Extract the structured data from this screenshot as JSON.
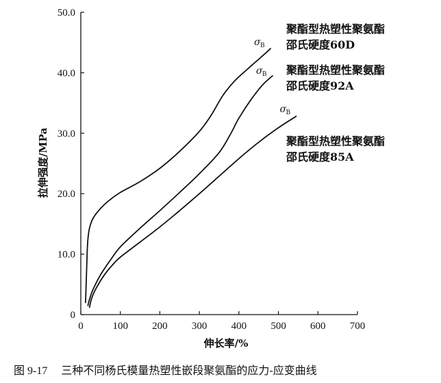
{
  "chart_data": {
    "type": "line",
    "title": "",
    "xlabel": "伸长率/%",
    "ylabel": "拉伸强度/MPa",
    "xlim": [
      0,
      700
    ],
    "ylim": [
      0,
      50
    ],
    "x_ticks": [
      "0",
      "100",
      "200",
      "300",
      "400",
      "500",
      "600",
      "700"
    ],
    "y_ticks": [
      "0",
      "10.0",
      "20.0",
      "30.0",
      "40.0",
      "50.0"
    ],
    "grid": false,
    "series": [
      {
        "name_line1": "聚酯型热塑性聚氨酯",
        "name_line2": "邵氏硬度60D",
        "marker_label": "σ",
        "marker_sub": "B",
        "points": [
          [
            12,
            2
          ],
          [
            14,
            6
          ],
          [
            16,
            10
          ],
          [
            18,
            12.5
          ],
          [
            22,
            14.3
          ],
          [
            30,
            15.8
          ],
          [
            45,
            17.2
          ],
          [
            70,
            18.8
          ],
          [
            100,
            20.2
          ],
          [
            150,
            22
          ],
          [
            200,
            24.2
          ],
          [
            250,
            27
          ],
          [
            300,
            30.3
          ],
          [
            330,
            33
          ],
          [
            360,
            36.3
          ],
          [
            390,
            38.7
          ],
          [
            420,
            40.5
          ],
          [
            460,
            42.8
          ],
          [
            480,
            44
          ]
        ]
      },
      {
        "name_line1": "聚酯型热塑性聚氨酯",
        "name_line2": "邵氏硬度92A",
        "marker_label": "σ",
        "marker_sub": "B",
        "points": [
          [
            18,
            1.5
          ],
          [
            22,
            2.5
          ],
          [
            30,
            4
          ],
          [
            50,
            6.6
          ],
          [
            80,
            9.5
          ],
          [
            100,
            11.2
          ],
          [
            150,
            14.3
          ],
          [
            200,
            17.2
          ],
          [
            250,
            20.2
          ],
          [
            300,
            23.3
          ],
          [
            350,
            26.8
          ],
          [
            380,
            30
          ],
          [
            400,
            32.5
          ],
          [
            430,
            35.5
          ],
          [
            460,
            38
          ],
          [
            485,
            39.5
          ]
        ]
      },
      {
        "name_line1": "聚酯型热塑性聚氨酯",
        "name_line2": "邵氏硬度85A",
        "marker_label": "σ",
        "marker_sub": "B",
        "points": [
          [
            22,
            1.2
          ],
          [
            28,
            2.8
          ],
          [
            40,
            4.5
          ],
          [
            60,
            6.6
          ],
          [
            80,
            8.2
          ],
          [
            100,
            9.5
          ],
          [
            150,
            12
          ],
          [
            200,
            14.5
          ],
          [
            250,
            17.2
          ],
          [
            300,
            20
          ],
          [
            350,
            22.9
          ],
          [
            400,
            25.8
          ],
          [
            450,
            28.5
          ],
          [
            500,
            30.9
          ],
          [
            545,
            32.8
          ]
        ]
      }
    ]
  },
  "caption": {
    "number": "图 9-17",
    "text": "三种不同杨氏模量热塑性嵌段聚氨酯的应力-应变曲线"
  }
}
